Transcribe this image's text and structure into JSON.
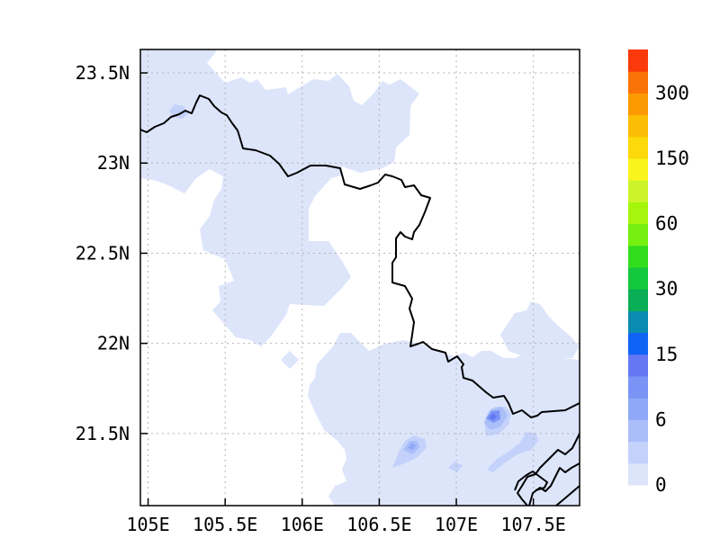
{
  "map": {
    "lon_labels": [
      "105E",
      "105.5E",
      "106E",
      "106.5E",
      "107E",
      "107.5E"
    ],
    "lat_labels": [
      "23.5N",
      "23N",
      "22.5N",
      "22N",
      "21.5N"
    ],
    "lon_values": [
      105,
      105.5,
      106,
      106.5,
      107,
      107.5
    ],
    "lat_values": [
      23.5,
      23,
      22.5,
      22,
      21.5
    ],
    "lon_range": [
      104.95,
      107.8
    ],
    "lat_range": [
      21.1,
      23.63
    ],
    "gridlines": true,
    "fill_color_lowest": "#dde5fb"
  },
  "colorbar": {
    "labels": [
      "0",
      "6",
      "15",
      "30",
      "60",
      "150",
      "300"
    ],
    "colors": [
      "#dde5fb",
      "#c4d2fb",
      "#aabef9",
      "#8fa8f7",
      "#7a94f6",
      "#6478f4",
      "#1063f5",
      "#0a8bb0",
      "#0aae55",
      "#13c83d",
      "#32dd1f",
      "#75f010",
      "#a6f50c",
      "#cbf52a",
      "#f7f51c",
      "#fcd90a",
      "#fcbe04",
      "#fc9a04",
      "#fb7208",
      "#fa3a0a"
    ]
  }
}
